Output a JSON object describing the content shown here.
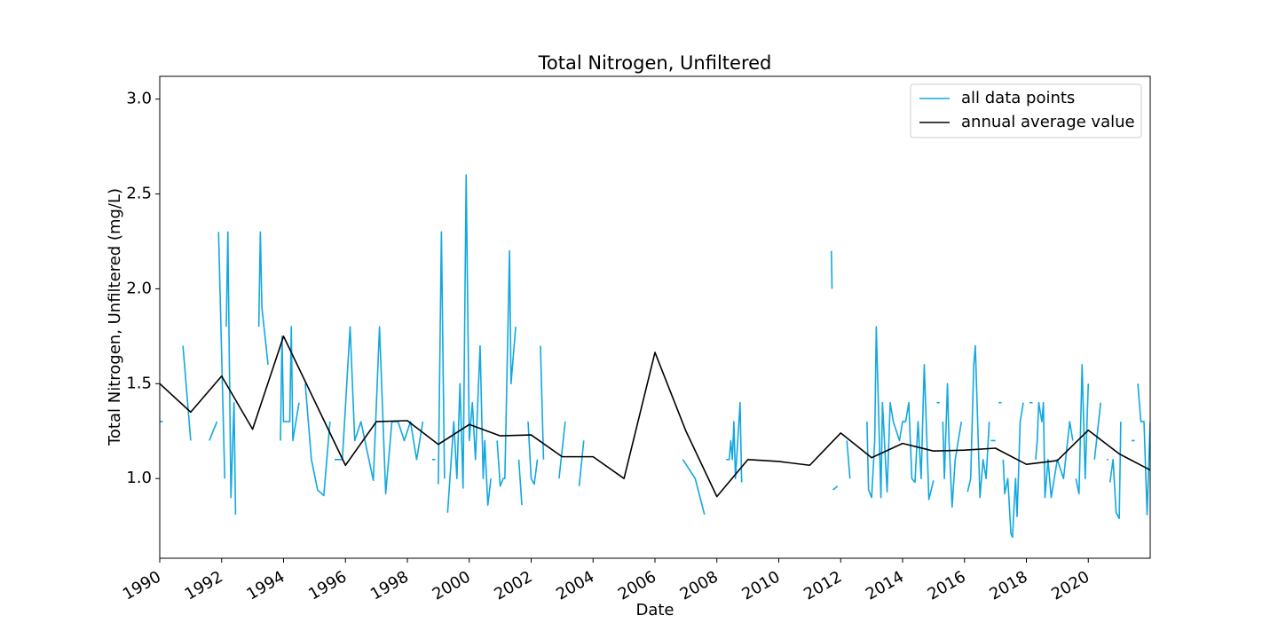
{
  "chart_data": {
    "type": "line",
    "title": "Total Nitrogen, Unfiltered",
    "x_label": "Date",
    "y_label": "Total Nitrogen, Unfiltered (mg/L)",
    "xlim": [
      1990,
      2022
    ],
    "xticks": [
      1990,
      1992,
      1994,
      1996,
      1998,
      2000,
      2002,
      2004,
      2006,
      2008,
      2010,
      2012,
      2014,
      2016,
      2018,
      2020
    ],
    "ylim": [
      0.58,
      3.12
    ],
    "yticks": [
      {
        "value": 1,
        "label": "1.0"
      },
      1.5,
      {
        "value": 2,
        "label": "2.0"
      },
      2.5,
      {
        "value": 3,
        "label": "3.0"
      }
    ],
    "legend": "upper right",
    "series": [
      {
        "name": "all data points",
        "color": "#11a8df",
        "x": [
          1990.0,
          1990.1,
          null,
          1990.75,
          1991.0,
          null,
          1991.6,
          1991.85,
          null,
          1991.9,
          1992.1,
          null,
          1992.15,
          1992.2,
          1992.3,
          1992.4,
          1992.45,
          null,
          1993.2,
          1993.25,
          1993.3,
          1993.5,
          null,
          1993.9,
          1993.95,
          1994.0,
          1994.2,
          1994.25,
          1994.3,
          1994.5,
          null,
          1994.7,
          1994.9,
          1995.1,
          1995.3,
          1995.5,
          null,
          1995.65,
          1995.9,
          1996.15,
          1996.3,
          1996.5,
          1996.9,
          1997.1,
          1997.3,
          1997.5,
          1997.7,
          1997.9,
          1998.1,
          1998.3,
          1998.5,
          null,
          1998.8,
          1998.9,
          null,
          1999.0,
          1999.1,
          1999.2,
          null,
          1999.3,
          1999.5,
          1999.6,
          1999.7,
          1999.8,
          1999.9,
          2000.0,
          2000.1,
          2000.2,
          2000.35,
          2000.45,
          2000.5,
          2000.6,
          2000.7,
          null,
          2000.9,
          2001.0,
          2001.1,
          2001.15,
          2001.3,
          2001.35,
          2001.5,
          null,
          2001.6,
          2001.7,
          null,
          2001.9,
          2002.0,
          2002.1,
          2002.2,
          null,
          2002.3,
          2002.4,
          null,
          2002.9,
          2003.1,
          null,
          2003.55,
          2003.7,
          null,
          2006.9,
          2007.3,
          2007.6,
          null,
          2008.3,
          2008.4,
          2008.45,
          2008.5,
          2008.55,
          2008.6,
          2008.75,
          2008.8,
          null,
          2011.7,
          2011.72,
          null,
          2011.75,
          2011.9,
          null,
          2012.2,
          2012.3,
          null,
          2012.85,
          2012.9,
          2013.0,
          2013.1,
          2013.15,
          2013.3,
          2013.35,
          2013.5,
          2013.6,
          2013.7,
          2013.9,
          2014.0,
          2014.1,
          2014.2,
          2014.3,
          2014.4,
          2014.5,
          2014.6,
          2014.7,
          2014.85,
          2015.0,
          null,
          2015.1,
          2015.2,
          null,
          2015.3,
          2015.35,
          2015.45,
          2015.5,
          2015.6,
          2015.7,
          2015.9,
          null,
          2016.1,
          2016.2,
          2016.3,
          2016.35,
          2016.5,
          2016.6,
          2016.7,
          2016.8,
          null,
          2016.85,
          2017.0,
          null,
          2017.1,
          2017.2,
          null,
          2017.25,
          2017.3,
          2017.4,
          2017.5,
          2017.55,
          2017.65,
          2017.7,
          2017.8,
          2017.9,
          null,
          2018.1,
          2018.2,
          null,
          2018.3,
          2018.35,
          2018.4,
          2018.5,
          2018.55,
          2018.6,
          2018.7,
          2018.8,
          2018.9,
          2019.0,
          2019.2,
          2019.4,
          2019.5,
          null,
          2019.6,
          2019.7,
          2019.8,
          2019.9,
          2020.0,
          null,
          2020.2,
          2020.4,
          null,
          2020.6,
          2020.65,
          null,
          2020.7,
          2020.8,
          2020.9,
          2021.0,
          2021.05,
          null,
          2021.4,
          2021.5,
          null,
          2021.6,
          2021.7,
          2021.8,
          2021.9,
          2022.0
        ],
        "values": [
          1.3,
          1.3,
          null,
          1.7,
          1.2,
          null,
          1.2,
          1.3,
          null,
          2.3,
          1.0,
          null,
          1.8,
          2.3,
          0.9,
          1.4,
          0.81,
          null,
          1.8,
          2.3,
          1.9,
          1.6,
          null,
          1.2,
          1.75,
          1.3,
          1.3,
          1.8,
          1.2,
          1.4,
          null,
          1.5,
          1.1,
          0.94,
          0.91,
          1.3,
          null,
          1.1,
          1.1,
          1.8,
          1.2,
          1.3,
          0.99,
          1.8,
          0.92,
          1.3,
          1.3,
          1.2,
          1.3,
          1.1,
          1.3,
          null,
          1.1,
          1.1,
          null,
          0.97,
          2.3,
          1.0,
          null,
          0.82,
          1.3,
          1.0,
          1.5,
          0.95,
          2.6,
          1.2,
          1.4,
          1.1,
          1.7,
          1.0,
          1.2,
          0.86,
          1.0,
          null,
          1.2,
          0.96,
          1.0,
          1.0,
          2.2,
          1.5,
          1.8,
          null,
          1.1,
          0.86,
          null,
          1.3,
          1.0,
          0.97,
          1.1,
          null,
          1.7,
          1.1,
          null,
          1.0,
          1.3,
          null,
          0.96,
          1.2,
          null,
          1.1,
          1.0,
          0.81,
          null,
          1.1,
          1.1,
          1.2,
          1.1,
          1.3,
          1.0,
          1.4,
          0.98,
          null,
          2.2,
          2.0,
          null,
          0.94,
          0.96,
          null,
          1.2,
          1.0,
          null,
          1.3,
          0.94,
          0.9,
          1.2,
          1.8,
          0.9,
          1.4,
          0.93,
          1.4,
          1.3,
          1.2,
          1.3,
          1.3,
          1.4,
          1.0,
          0.98,
          1.3,
          1.0,
          1.6,
          0.89,
          0.99,
          null,
          1.4,
          1.4,
          null,
          1.3,
          1.0,
          1.5,
          1.2,
          0.85,
          1.1,
          1.3,
          null,
          0.93,
          1.0,
          1.6,
          1.7,
          0.9,
          1.1,
          1.0,
          1.3,
          null,
          1.2,
          1.2,
          null,
          1.4,
          1.4,
          null,
          1.1,
          0.92,
          1.0,
          0.71,
          0.69,
          1.0,
          0.8,
          1.3,
          1.4,
          null,
          1.4,
          1.4,
          null,
          1.1,
          1.2,
          1.4,
          1.3,
          1.4,
          0.9,
          1.1,
          0.9,
          1.0,
          1.1,
          1.0,
          1.3,
          1.2,
          null,
          1.0,
          0.92,
          1.6,
          1.0,
          1.5,
          null,
          1.1,
          1.4,
          null,
          1.1,
          1.1,
          null,
          0.98,
          1.1,
          0.82,
          0.79,
          1.3,
          null,
          1.2,
          1.2,
          null,
          1.5,
          1.3,
          1.3,
          0.81,
          1.3
        ]
      },
      {
        "name": "annual average value",
        "color": "#000000",
        "x": [
          1990,
          1991,
          1992,
          1993,
          1994,
          1996,
          1997,
          1998,
          1999,
          2000,
          2001,
          2002,
          2003,
          2004,
          2005,
          2006,
          2007,
          2008,
          2009,
          2010,
          2011,
          2012,
          2013,
          2014,
          2015,
          2016,
          2017,
          2018,
          2019,
          2020,
          2021,
          2022
        ],
        "values": [
          1.5,
          1.35,
          1.54,
          1.26,
          1.75,
          1.07,
          1.3,
          1.305,
          1.18,
          1.285,
          1.225,
          1.23,
          1.115,
          1.115,
          1.0,
          1.665,
          1.25,
          0.905,
          1.1,
          1.09,
          1.07,
          1.24,
          1.11,
          1.185,
          1.145,
          1.15,
          1.16,
          1.075,
          1.095,
          1.255,
          1.13,
          1.045
        ]
      }
    ]
  }
}
